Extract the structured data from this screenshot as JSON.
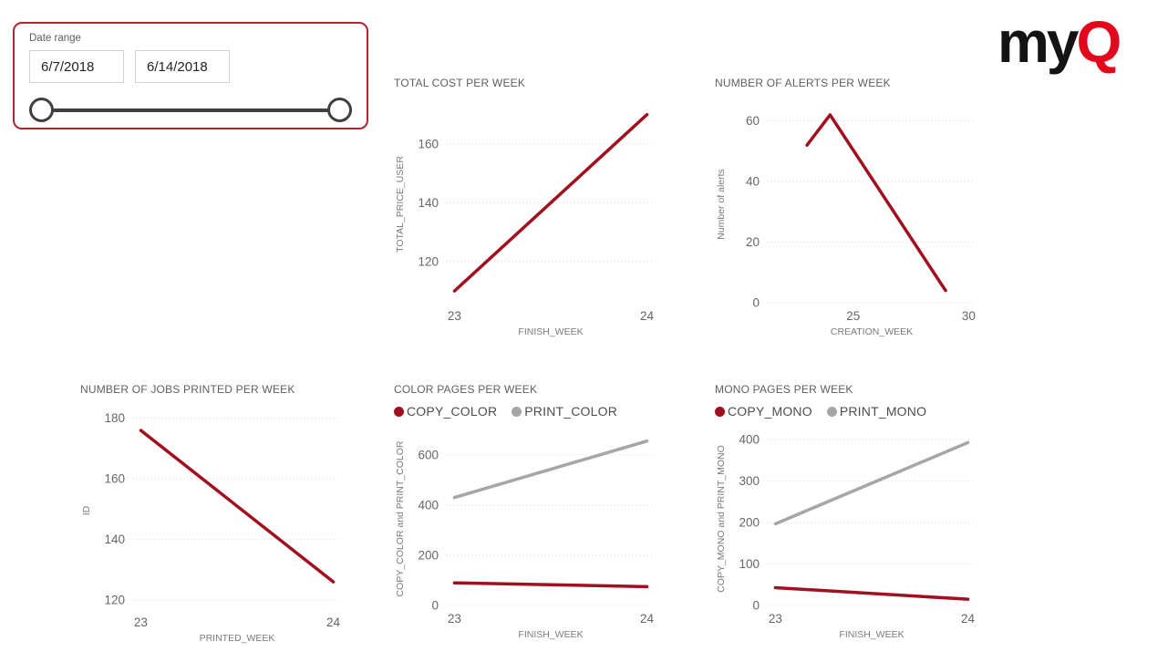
{
  "slicer": {
    "label": "Date range",
    "start_date": "6/7/2018",
    "end_date": "6/14/2018",
    "border_color": "#b2252e"
  },
  "logo": {
    "text_black": "my",
    "text_red": "Q",
    "black": "#141414",
    "red": "#e2071c"
  },
  "colors": {
    "line_red": "#a1101f",
    "line_gray": "#a6a6a6",
    "gridline": "#d8d8d8",
    "tick_text": "#666666",
    "axis_label_text": "#7a7a7a",
    "title_text": "#5f5e5c"
  },
  "chart_data": [
    {
      "type": "line",
      "title": "TOTAL COST PER WEEK",
      "xlabel": "FINISH_WEEK",
      "ylabel": "TOTAL_PRICE_USER",
      "x": [
        23,
        24
      ],
      "xticks": [
        23,
        24
      ],
      "xlim": [
        22.96,
        24.04
      ],
      "yticks": [
        120,
        140,
        160
      ],
      "ylim": [
        106,
        173
      ],
      "grid": "dotted-horizontal",
      "legend": false,
      "series": [
        {
          "name": "TOTAL_PRICE_USER",
          "color": "#a1101f",
          "values": [
            110,
            170
          ]
        }
      ]
    },
    {
      "type": "line",
      "title": "NUMBER OF ALERTS PER WEEK",
      "xlabel": "CREATION_WEEK",
      "ylabel": "Number of alerts",
      "x": [
        23,
        24,
        29
      ],
      "xticks": [
        25,
        30
      ],
      "xlim": [
        21.3,
        30.3
      ],
      "yticks": [
        0,
        20,
        40,
        60
      ],
      "ylim": [
        0,
        65
      ],
      "grid": "dotted-horizontal",
      "legend": false,
      "series": [
        {
          "name": "Number of alerts",
          "color": "#a1101f",
          "values": [
            52,
            62,
            4
          ]
        }
      ]
    },
    {
      "type": "line",
      "title": "NUMBER OF JOBS PRINTED PER WEEK",
      "xlabel": "PRINTED_WEEK",
      "ylabel": "ID",
      "x": [
        23,
        24
      ],
      "xticks": [
        23,
        24
      ],
      "xlim": [
        22.96,
        24.04
      ],
      "yticks": [
        120,
        140,
        160,
        180
      ],
      "ylim": [
        117,
        182
      ],
      "grid": "dotted-horizontal",
      "legend": false,
      "series": [
        {
          "name": "ID",
          "color": "#a1101f",
          "values": [
            176,
            126
          ]
        }
      ]
    },
    {
      "type": "line",
      "title": "COLOR PAGES PER WEEK",
      "xlabel": "FINISH_WEEK",
      "ylabel": "COPY_COLOR and PRINT_COLOR",
      "x": [
        23,
        24
      ],
      "xticks": [
        23,
        24
      ],
      "xlim": [
        22.96,
        24.04
      ],
      "yticks": [
        0,
        200,
        400,
        600
      ],
      "ylim": [
        0,
        690
      ],
      "grid": "dotted-horizontal",
      "legend": true,
      "legend_position": "top",
      "series": [
        {
          "name": "COPY_COLOR",
          "color": "#a1101f",
          "values": [
            90,
            75
          ]
        },
        {
          "name": "PRINT_COLOR",
          "color": "#a6a6a6",
          "values": [
            430,
            655
          ]
        }
      ]
    },
    {
      "type": "line",
      "title": "MONO PAGES PER WEEK",
      "xlabel": "FINISH_WEEK",
      "ylabel": "COPY_MONO and PRINT_MONO",
      "x": [
        23,
        24
      ],
      "xticks": [
        23,
        24
      ],
      "xlim": [
        22.96,
        24.04
      ],
      "yticks": [
        0,
        100,
        200,
        300,
        400
      ],
      "ylim": [
        0,
        418
      ],
      "grid": "dotted-horizontal",
      "legend": true,
      "legend_position": "top",
      "series": [
        {
          "name": "COPY_MONO",
          "color": "#a1101f",
          "values": [
            43,
            15
          ]
        },
        {
          "name": "PRINT_MONO",
          "color": "#a6a6a6",
          "values": [
            197,
            393
          ]
        }
      ]
    }
  ]
}
